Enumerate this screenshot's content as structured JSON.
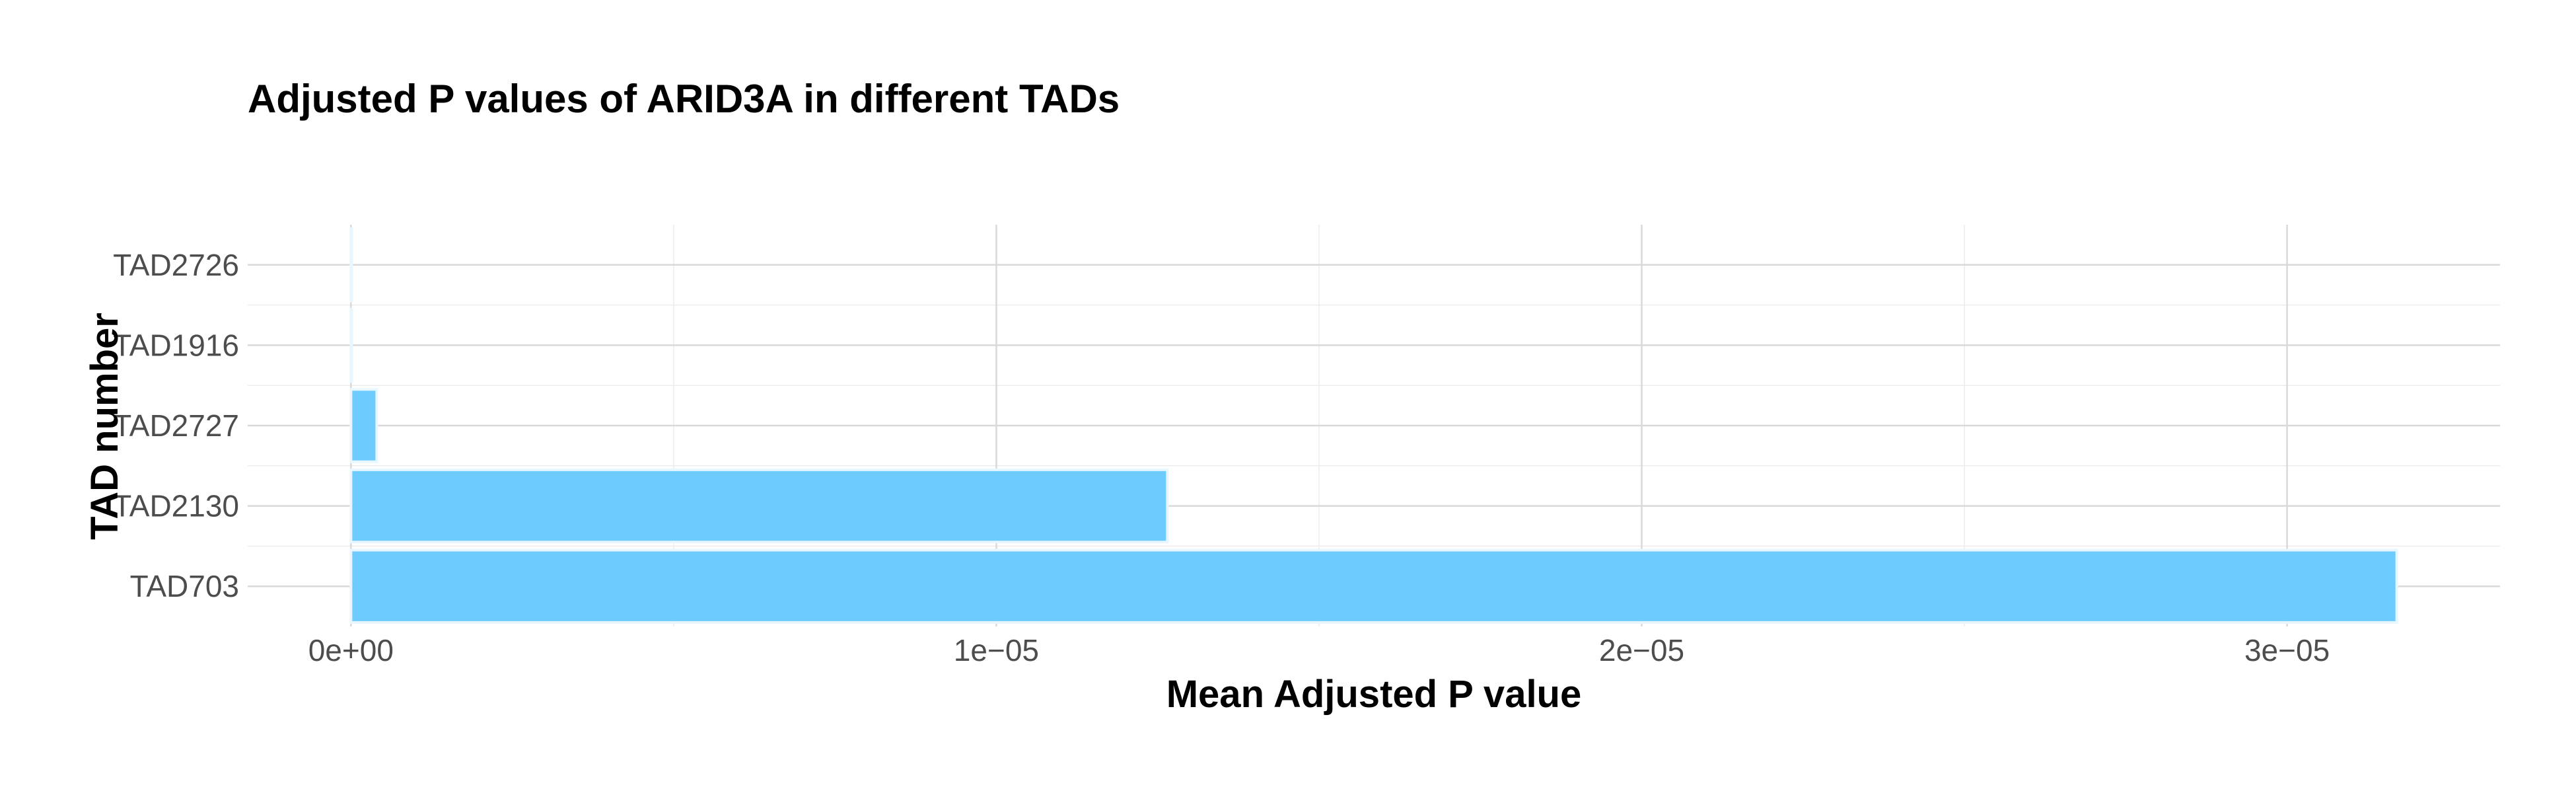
{
  "chart_data": {
    "type": "bar",
    "orientation": "horizontal",
    "title": "Adjusted P values of ARID3A in different TADs",
    "xlabel": "Mean Adjusted P value",
    "ylabel": "TAD number",
    "categories": [
      "TAD703",
      "TAD2130",
      "TAD2727",
      "TAD1916",
      "TAD2726"
    ],
    "values": [
      3.17e-05,
      1.265e-05,
      4e-07,
      1e-09,
      1e-09
    ],
    "xlim": [
      -1.6e-06,
      3.33e-05
    ],
    "x_ticks": [
      {
        "value": 0,
        "label": "0e+00"
      },
      {
        "value": 1e-05,
        "label": "1e−05"
      },
      {
        "value": 2e-05,
        "label": "2e−05"
      },
      {
        "value": 3e-05,
        "label": "3e−05"
      }
    ],
    "x_minor_ticks": [
      5e-06,
      1.5e-05,
      2.5e-05
    ],
    "grid": true,
    "legend": "none",
    "bar_color": "#6ecbfd"
  }
}
